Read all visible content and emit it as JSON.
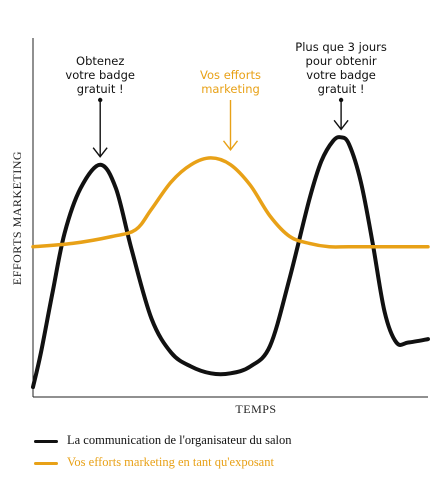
{
  "chart_data": {
    "type": "line",
    "xlabel": "TEMPS",
    "ylabel": "EFFORTS MARKETING",
    "x_ticks": "none",
    "y_ticks": "none",
    "grid": false,
    "legend_position": "bottom-left",
    "colors": {
      "organizer": "#111111",
      "exhibitor": "#E8A117",
      "annotation_orange": "#E8A117"
    },
    "series": [
      {
        "name": "La communication de l'organisateur du salon",
        "color": "#111111",
        "x": [
          0,
          2,
          5,
          8,
          12,
          17,
          21,
          25,
          30,
          35,
          40,
          45,
          50,
          55,
          60,
          65,
          70,
          73,
          76,
          78,
          80,
          83,
          86,
          89,
          92,
          95,
          100
        ],
        "y": [
          0,
          10,
          28,
          45,
          58,
          65,
          58,
          40,
          20,
          10,
          6,
          4,
          4,
          6,
          12,
          32,
          55,
          66,
          72,
          73,
          71,
          60,
          42,
          22,
          13,
          13,
          14
        ]
      },
      {
        "name": "Vos efforts marketing en tant qu'exposant",
        "color": "#E8A117",
        "x": [
          0,
          10,
          20,
          26,
          30,
          35,
          40,
          45,
          50,
          55,
          60,
          65,
          70,
          75,
          80,
          90,
          100
        ],
        "y": [
          41,
          42,
          44,
          46,
          52,
          60,
          65,
          67,
          65,
          59,
          50,
          44,
          42,
          41,
          41,
          41,
          41
        ]
      }
    ],
    "annotations": [
      {
        "text_lines": [
          "Obtenez",
          "votre badge",
          "gratuit !"
        ],
        "x": 17,
        "y": 65,
        "color": "#111111",
        "arrow": "down"
      },
      {
        "text_lines": [
          "Vos efforts",
          "marketing"
        ],
        "x": 50,
        "y": 67,
        "color": "#E8A117",
        "arrow": "down"
      },
      {
        "text_lines": [
          "Plus que 3 jours",
          "pour obtenir",
          "votre badge",
          "gratuit !"
        ],
        "x": 78,
        "y": 73,
        "color": "#111111",
        "arrow": "down"
      }
    ],
    "xlim": [
      0,
      100
    ],
    "ylim": [
      0,
      100
    ]
  }
}
